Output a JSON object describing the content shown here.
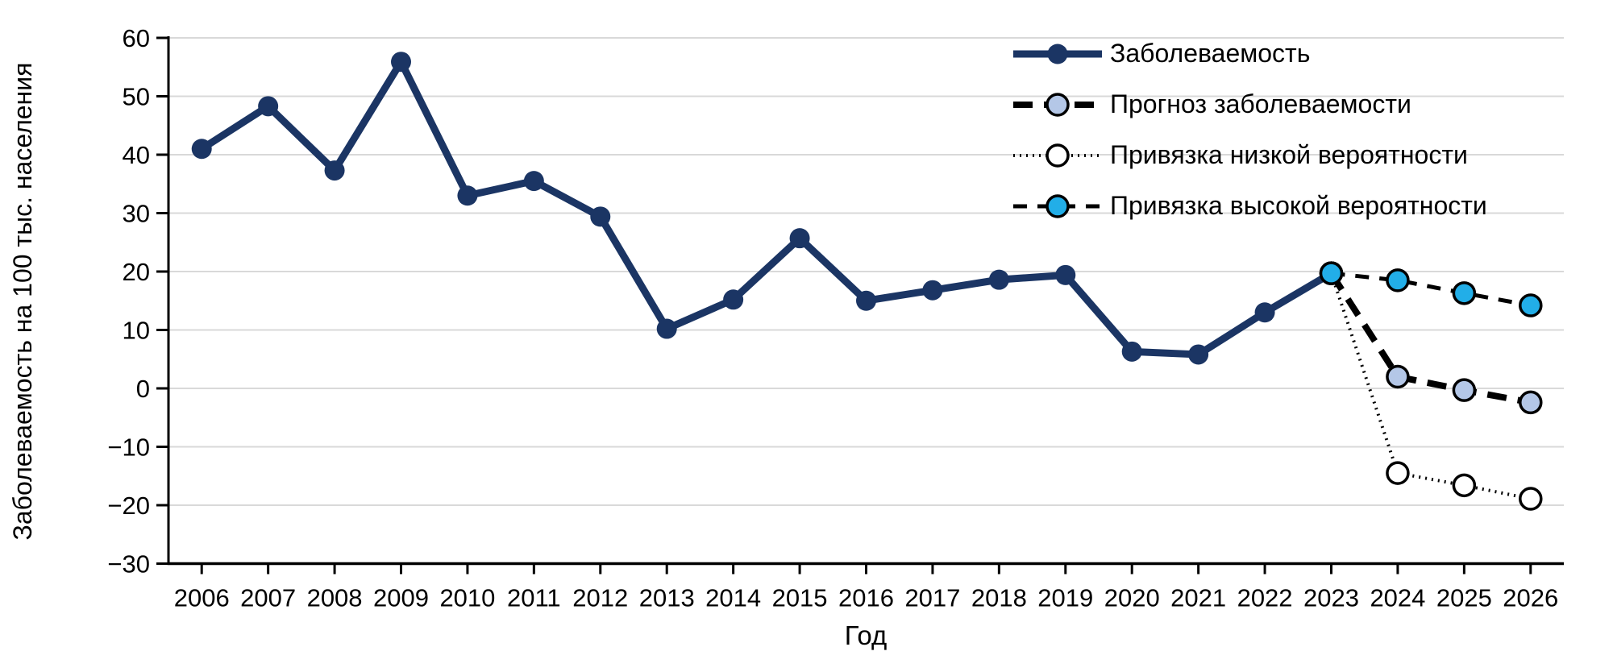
{
  "chart_data": {
    "type": "line",
    "title": "",
    "xlabel": "Год",
    "ylabel": "Заболеваемость на 100 тыс. населения",
    "x": [
      2006,
      2007,
      2008,
      2009,
      2010,
      2011,
      2012,
      2013,
      2014,
      2015,
      2016,
      2017,
      2018,
      2019,
      2020,
      2021,
      2022,
      2023,
      2024,
      2025,
      2026
    ],
    "ylim": [
      -30,
      60
    ],
    "yticks": [
      60,
      50,
      40,
      30,
      20,
      10,
      0,
      -10,
      -20,
      -30
    ],
    "grid": "horizontal",
    "legend_position": "top-right-inside",
    "series": [
      {
        "name": "Заболеваемость",
        "line_style": "solid",
        "color": "#1B3564",
        "marker_fill": "#1B3564",
        "marker_border": "none",
        "values": [
          41.0,
          48.3,
          37.3,
          55.9,
          33.0,
          35.5,
          29.4,
          10.2,
          15.2,
          25.7,
          15.0,
          16.8,
          18.6,
          19.4,
          6.3,
          5.8,
          13.0,
          19.7,
          null,
          null,
          null
        ]
      },
      {
        "name": "Прогноз заболеваемости",
        "line_style": "dashed-thick",
        "color": "#000000",
        "marker_fill": "#B4C7E7",
        "marker_border": "#000000",
        "values": [
          null,
          null,
          null,
          null,
          null,
          null,
          null,
          null,
          null,
          null,
          null,
          null,
          null,
          null,
          null,
          null,
          null,
          19.7,
          2.0,
          -0.3,
          -2.4
        ]
      },
      {
        "name": "Привязка низкой вероятности",
        "line_style": "dotted",
        "color": "#000000",
        "marker_fill": "#FFFFFF",
        "marker_border": "#000000",
        "values": [
          null,
          null,
          null,
          null,
          null,
          null,
          null,
          null,
          null,
          null,
          null,
          null,
          null,
          null,
          null,
          null,
          null,
          19.7,
          -14.5,
          -16.6,
          -18.9
        ]
      },
      {
        "name": "Привязка высокой вероятности",
        "line_style": "dashed",
        "color": "#000000",
        "marker_fill": "#22AEE8",
        "marker_border": "#000000",
        "values": [
          null,
          null,
          null,
          null,
          null,
          null,
          null,
          null,
          null,
          null,
          null,
          null,
          null,
          null,
          null,
          null,
          null,
          19.7,
          18.5,
          16.3,
          14.2
        ]
      }
    ]
  },
  "colors": {
    "background": "#FFFFFF",
    "gridline": "#D9D9D9",
    "axis": "#000000",
    "tick_text": "#000000"
  }
}
